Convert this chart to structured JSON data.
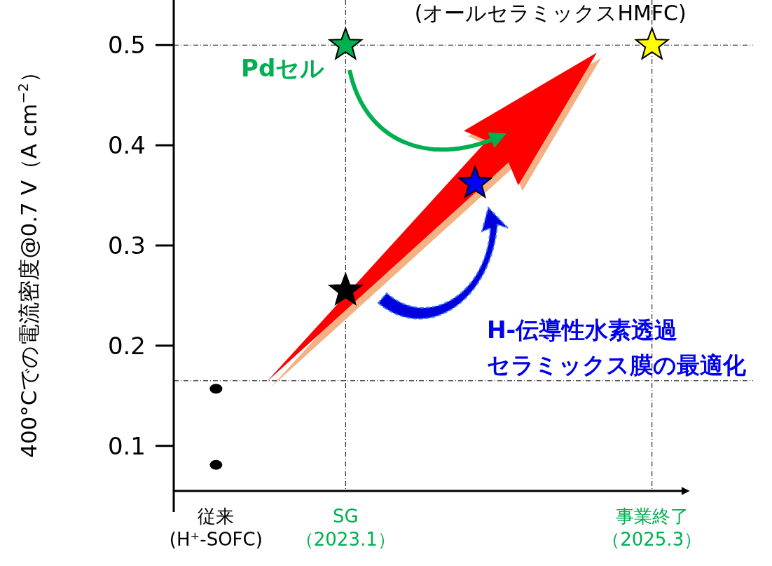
{
  "chart_data": {
    "type": "scatter",
    "ylabel": "400°Cでの電流密度@0.7 V（A cm$^{−2}$）",
    "annotations": [
      "H-伝導性水素透過セラミックス膜の最適化"
    ],
    "xlim": [
      "2021-10-15",
      "2025-05-20"
    ],
    "xticks": [
      {
        "value": "2022-02",
        "label": "従来(H⁺-SOFC)"
      },
      {
        "value": "2023-01",
        "label": "SG（2023.1）"
      },
      {
        "value": "2025-03",
        "label": "事業終了（2025.3）"
      }
    ],
    "ylim": [
      0.055,
      0.545
    ],
    "yticks": [
      0.1,
      0.2,
      0.3,
      0.4,
      0.5
    ],
    "ref_lines": [
      {
        "axis": "y",
        "value": 0.5,
        "color": "#000000",
        "line_style": "dashed"
      },
      {
        "axis": "y",
        "value": 0.165,
        "color": "#000000",
        "line_style": "dashed"
      },
      {
        "axis": "x",
        "value": "2023-01",
        "color": "#000000",
        "line_style": "dashed"
      },
      {
        "axis": "x",
        "value": "2025-03",
        "color": "#000000",
        "line_style": "dashed"
      }
    ],
    "series": [
      {
        "color": "#000000",
        "marker": "circle",
        "x": [
          "2022-02",
          "2022-02"
        ],
        "values": [
          0.157,
          0.081
        ]
      },
      {
        "color": "#000000",
        "marker": "star",
        "x": [
          "2023-01"
        ],
        "values": [
          0.255
        ]
      },
      {
        "name": "Pdセル",
        "color": "#00b050",
        "marker": "star",
        "x": [
          "2023-01"
        ],
        "values": [
          0.5
        ]
      },
      {
        "color": "#0000ff",
        "marker": "star",
        "x": [
          "2023-12"
        ],
        "values": [
          0.362
        ]
      },
      {
        "name": "(オールセラミックスHMFC)",
        "color": "#ffff00",
        "marker": "star",
        "x": [
          "2025-03"
        ],
        "values": [
          0.5
        ]
      }
    ]
  }
}
